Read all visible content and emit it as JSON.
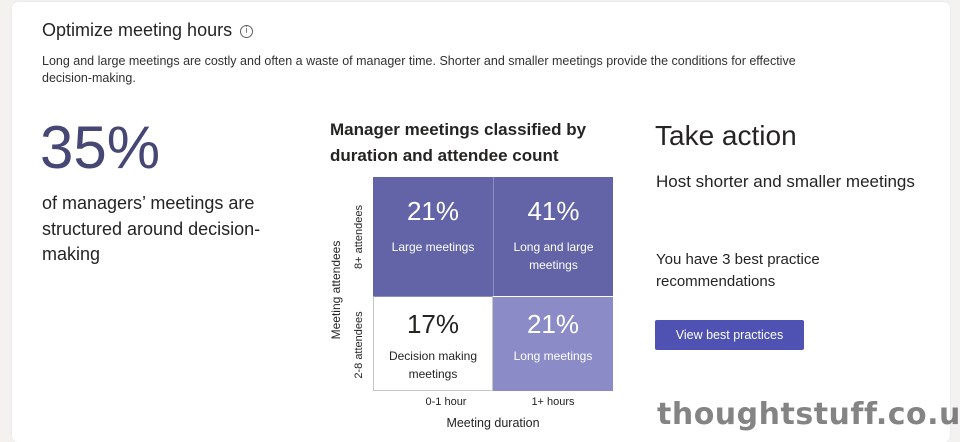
{
  "header": {
    "title": "Optimize meeting hours",
    "info_icon": "info-icon",
    "description": "Long and large meetings are costly and often a waste of manager time. Shorter and smaller meetings provide the conditions for effective decision-making."
  },
  "stat": {
    "value": "35%",
    "caption": "of managers’ meetings are structured around decision-making"
  },
  "matrix": {
    "title": "Manager meetings classified by duration and attendee count",
    "y_axis_title": "Meeting attendees",
    "x_axis_title": "Meeting duration",
    "rows": [
      "8+ attendees",
      "2-8 attendees"
    ],
    "columns": [
      "0-1 hour",
      "1+ hours"
    ],
    "cells": {
      "large_short": {
        "value": "21%",
        "label": "Large meetings"
      },
      "large_long": {
        "value": "41%",
        "label": "Long and large meetings"
      },
      "small_short": {
        "value": "17%",
        "label": "Decision making meetings"
      },
      "small_long": {
        "value": "21%",
        "label": "Long meetings"
      }
    },
    "colors": {
      "dark": "#6264a7",
      "light": "#8b8cc7",
      "white": "#ffffff"
    }
  },
  "action": {
    "title": "Take action",
    "subtitle": "Host shorter and smaller meetings",
    "text": "You have 3 best practice recommendations",
    "button_label": "View best practices",
    "button_color": "#4f52b2"
  },
  "watermark": {
    "text": "thoughtstuff.co.uk"
  },
  "colors": {
    "accent_text": "#464775",
    "background": "#f3f2f1",
    "card": "#ffffff"
  }
}
